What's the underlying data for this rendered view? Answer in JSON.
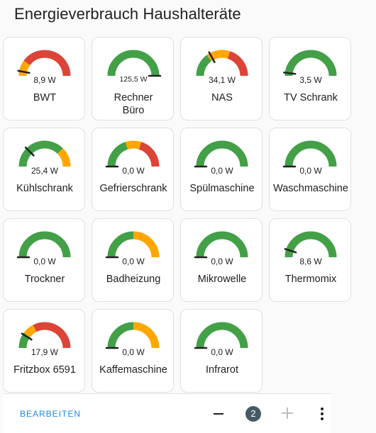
{
  "page": {
    "title": "Energieverbrauch Haushalteräte"
  },
  "colors": {
    "green": "#43a047",
    "orange": "#ffa600",
    "red": "#db4437",
    "needle": "#212121",
    "accent": "#1e88e5"
  },
  "gauges": [
    {
      "name": "BWT",
      "value_text": "8,9 W",
      "level": 0.06,
      "bands": [
        [
          "green",
          0,
          0.1
        ],
        [
          "orange",
          0,
          0.2
        ],
        [
          "red",
          0.2,
          1
        ]
      ]
    },
    {
      "name": "Rechner Büro",
      "value_text": "125,5 W",
      "level": 1.0,
      "bands": [
        [
          "green",
          0,
          1
        ]
      ]
    },
    {
      "name": "NAS",
      "value_text": "34,1 W",
      "level": 0.34,
      "bands": [
        [
          "green",
          0,
          0.3
        ],
        [
          "orange",
          0.3,
          0.6
        ],
        [
          "red",
          0.6,
          1
        ]
      ]
    },
    {
      "name": "TV Schrank",
      "value_text": "3,5 W",
      "level": 0.04,
      "bands": [
        [
          "green",
          0,
          1
        ]
      ]
    },
    {
      "name": "Kühlschrank",
      "value_text": "25,4 W",
      "level": 0.25,
      "bands": [
        [
          "green",
          0,
          0.75
        ],
        [
          "orange",
          0.75,
          1
        ]
      ]
    },
    {
      "name": "Gefrierschrank",
      "value_text": "0,0 W",
      "level": 0,
      "bands": [
        [
          "green",
          0,
          0.4
        ],
        [
          "orange",
          0.4,
          0.6
        ],
        [
          "red",
          0.6,
          1
        ]
      ]
    },
    {
      "name": "Spülmaschine",
      "value_text": "0,0 W",
      "level": 0,
      "bands": [
        [
          "green",
          0,
          1
        ]
      ]
    },
    {
      "name": "Waschmaschine",
      "value_text": "0,0 W",
      "level": 0,
      "bands": [
        [
          "green",
          0,
          1
        ]
      ]
    },
    {
      "name": "Trockner",
      "value_text": "0,0 W",
      "level": 0,
      "bands": [
        [
          "green",
          0,
          1
        ]
      ]
    },
    {
      "name": "Badheizung",
      "value_text": "0,0 W",
      "level": 0,
      "bands": [
        [
          "green",
          0,
          0.5
        ],
        [
          "orange",
          0.5,
          1
        ]
      ]
    },
    {
      "name": "Mikrowelle",
      "value_text": "0,0 W",
      "level": 0,
      "bands": [
        [
          "green",
          0,
          1
        ]
      ]
    },
    {
      "name": "Thermomix",
      "value_text": "8,6 W",
      "level": 0.1,
      "bands": [
        [
          "green",
          0,
          1
        ]
      ]
    },
    {
      "name": "Fritzbox 6591",
      "value_text": "17,9 W",
      "level": 0.18,
      "bands": [
        [
          "green",
          0,
          0.2
        ],
        [
          "orange",
          0.2,
          0.35
        ],
        [
          "red",
          0.35,
          1
        ]
      ]
    },
    {
      "name": "Kaffemaschine",
      "value_text": "0,0 W",
      "level": 0,
      "bands": [
        [
          "green",
          0,
          0.5
        ],
        [
          "orange",
          0.5,
          1
        ]
      ]
    },
    {
      "name": "Infrarot",
      "value_text": "0,0 W",
      "level": 0,
      "bands": [
        [
          "green",
          0,
          1
        ]
      ]
    }
  ],
  "footer": {
    "edit_label": "BEARBEITEN",
    "page_number": "2",
    "minus_icon": "minus-icon",
    "plus_icon": "plus-icon",
    "more_icon": "more-vert-icon"
  }
}
